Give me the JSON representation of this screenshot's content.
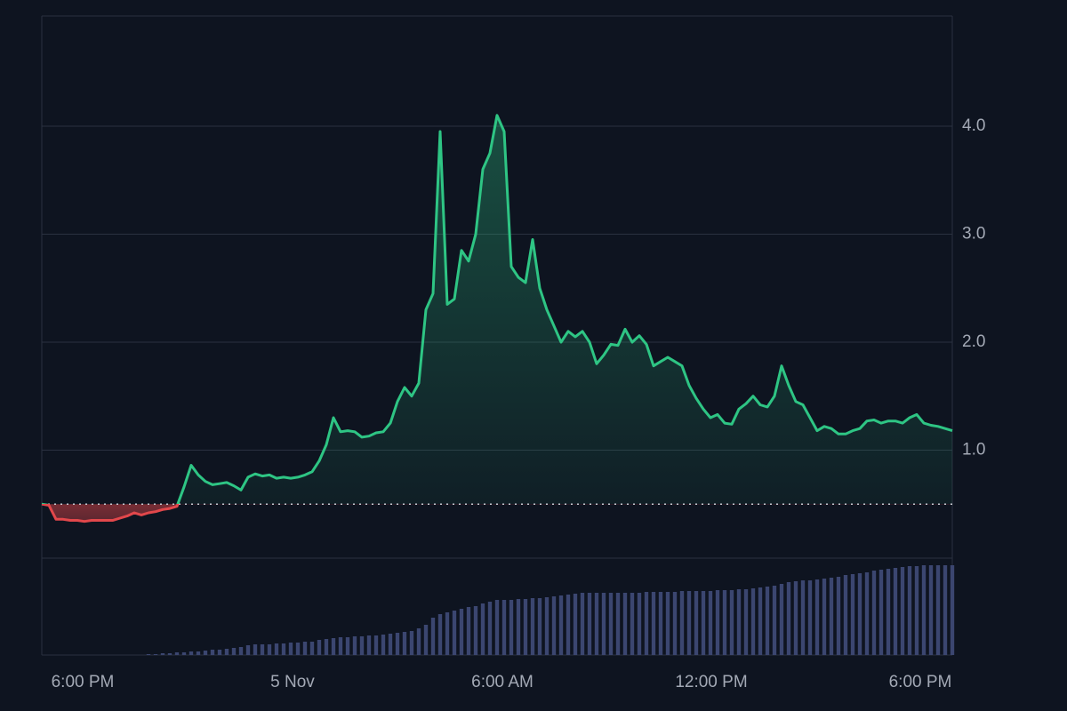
{
  "chart_data": {
    "type": "baseline-area",
    "baseline": 0.5,
    "colors": {
      "up": "#2ec584",
      "down": "#e2474b",
      "volume": "#3b4670"
    },
    "grid": true,
    "ylim": [
      0,
      5.02
    ],
    "yticks": [
      {
        "value": 1,
        "label": "1.0"
      },
      {
        "value": 2,
        "label": "2.0"
      },
      {
        "value": 3,
        "label": "3.0"
      },
      {
        "value": 4,
        "label": "4.0"
      }
    ],
    "xlim": [
      0,
      128
    ],
    "xticks": [
      {
        "value": 5.75,
        "label": "6:00 PM"
      },
      {
        "value": 35.25,
        "label": "5 Nov"
      },
      {
        "value": 64.75,
        "label": "6:00 AM"
      },
      {
        "value": 94.125,
        "label": "12:00 PM"
      },
      {
        "value": 123.5,
        "label": "6:00 PM"
      }
    ],
    "values": [
      0.5,
      0.49,
      0.36,
      0.36,
      0.35,
      0.35,
      0.34,
      0.35,
      0.35,
      0.35,
      0.35,
      0.37,
      0.39,
      0.42,
      0.4,
      0.42,
      0.43,
      0.45,
      0.46,
      0.48,
      0.66,
      0.86,
      0.77,
      0.71,
      0.68,
      0.69,
      0.7,
      0.67,
      0.63,
      0.75,
      0.78,
      0.76,
      0.77,
      0.74,
      0.75,
      0.74,
      0.75,
      0.77,
      0.8,
      0.9,
      1.05,
      1.3,
      1.17,
      1.18,
      1.17,
      1.12,
      1.13,
      1.16,
      1.17,
      1.25,
      1.45,
      1.58,
      1.5,
      1.62,
      2.3,
      2.45,
      3.95,
      2.35,
      2.4,
      2.85,
      2.75,
      3.0,
      3.6,
      3.75,
      4.1,
      3.95,
      2.7,
      2.6,
      2.55,
      2.95,
      2.5,
      2.3,
      2.15,
      2.0,
      2.1,
      2.05,
      2.1,
      2.0,
      1.8,
      1.88,
      1.98,
      1.97,
      2.12,
      2.0,
      2.06,
      1.98,
      1.78,
      1.82,
      1.86,
      1.82,
      1.78,
      1.6,
      1.48,
      1.38,
      1.3,
      1.33,
      1.25,
      1.24,
      1.38,
      1.43,
      1.5,
      1.42,
      1.4,
      1.5,
      1.78,
      1.6,
      1.45,
      1.42,
      1.3,
      1.18,
      1.22,
      1.2,
      1.15,
      1.15,
      1.18,
      1.2,
      1.27,
      1.28,
      1.25,
      1.27,
      1.27,
      1.25,
      1.3,
      1.33,
      1.25,
      1.23,
      1.22,
      1.2,
      1.18
    ],
    "volume_lim": [
      0,
      109
    ],
    "volume": [
      0,
      0,
      0,
      0,
      0,
      0,
      0,
      0,
      0,
      0,
      0,
      0,
      0,
      0,
      0,
      1,
      1,
      2,
      2,
      3,
      3,
      4,
      4,
      5,
      6,
      6,
      7,
      8,
      9,
      11,
      12,
      12,
      12,
      13,
      13,
      14,
      14,
      15,
      15,
      17,
      18,
      19,
      20,
      20,
      21,
      21,
      22,
      22,
      23,
      24,
      25,
      26,
      27,
      30,
      34,
      42,
      46,
      48,
      50,
      52,
      54,
      55,
      58,
      60,
      62,
      62,
      62,
      63,
      63,
      64,
      64,
      65,
      66,
      67,
      68,
      69,
      70,
      70,
      70,
      70,
      70,
      70,
      70,
      70,
      70,
      71,
      71,
      71,
      71,
      71,
      72,
      72,
      72,
      72,
      72,
      73,
      73,
      73,
      74,
      74,
      75,
      76,
      77,
      78,
      80,
      82,
      83,
      84,
      84,
      85,
      86,
      87,
      88,
      90,
      91,
      92,
      93,
      95,
      96,
      97,
      98,
      99,
      100,
      100,
      101,
      101,
      101,
      101,
      101
    ]
  }
}
